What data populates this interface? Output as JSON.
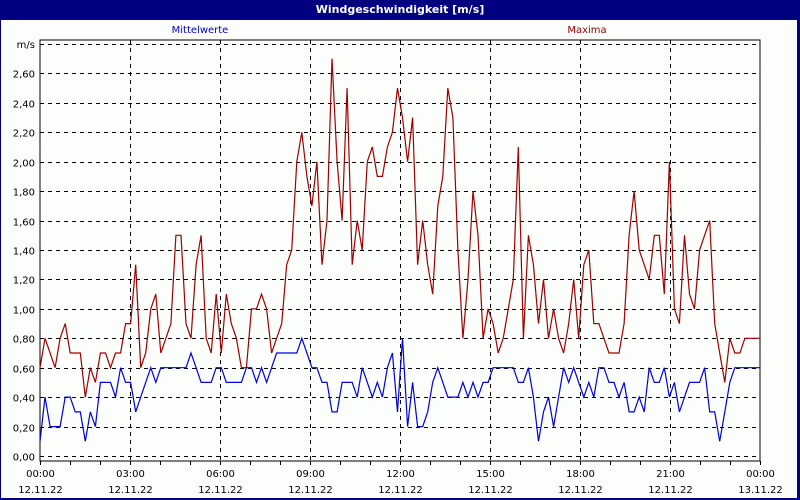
{
  "window": {
    "title": "Windgeschwindigkeit [m/s]"
  },
  "legend": {
    "mean_label": "Mittelwerte",
    "max_label": "Maxima",
    "mean_color": "#0000e0",
    "max_color": "#a00000"
  },
  "axis": {
    "y_unit": "m/s",
    "y_ticks": [
      "0,00",
      "0,20",
      "0,40",
      "0,60",
      "0,80",
      "1,00",
      "1,20",
      "1,40",
      "1,60",
      "1,80",
      "2,00",
      "2,20",
      "2,40",
      "2,60"
    ],
    "x_ticks": [
      {
        "time": "00:00",
        "date": "12.11.22"
      },
      {
        "time": "03:00",
        "date": "12.11.22"
      },
      {
        "time": "06:00",
        "date": "12.11.22"
      },
      {
        "time": "09:00",
        "date": "12.11.22"
      },
      {
        "time": "12:00",
        "date": "12.11.22"
      },
      {
        "time": "15:00",
        "date": "12.11.22"
      },
      {
        "time": "18:00",
        "date": "12.11.22"
      },
      {
        "time": "21:00",
        "date": "12.11.22"
      },
      {
        "time": "00:00",
        "date": "13.11.22"
      }
    ]
  },
  "chart_data": {
    "type": "line",
    "title": "Windgeschwindigkeit [m/s]",
    "xlabel": "",
    "ylabel": "m/s",
    "ylim": [
      0,
      2.8
    ],
    "x_range": [
      "12.11.22 00:00",
      "13.11.22 00:00"
    ],
    "interval_minutes": 10,
    "grid": true,
    "legend_position": "top",
    "series": [
      {
        "name": "Mittelwerte",
        "color": "#0000e0",
        "values": [
          0.1,
          0.4,
          0.2,
          0.2,
          0.2,
          0.4,
          0.4,
          0.3,
          0.3,
          0.1,
          0.3,
          0.2,
          0.5,
          0.5,
          0.5,
          0.4,
          0.6,
          0.5,
          0.5,
          0.3,
          0.4,
          0.5,
          0.6,
          0.5,
          0.6,
          0.6,
          0.6,
          0.6,
          0.6,
          0.6,
          0.7,
          0.6,
          0.5,
          0.5,
          0.5,
          0.6,
          0.6,
          0.5,
          0.5,
          0.5,
          0.5,
          0.6,
          0.6,
          0.5,
          0.6,
          0.5,
          0.6,
          0.7,
          0.7,
          0.7,
          0.7,
          0.7,
          0.8,
          0.7,
          0.6,
          0.6,
          0.5,
          0.5,
          0.3,
          0.3,
          0.5,
          0.5,
          0.5,
          0.4,
          0.6,
          0.5,
          0.4,
          0.5,
          0.4,
          0.6,
          0.7,
          0.3,
          0.8,
          0.2,
          0.5,
          0.2,
          0.2,
          0.3,
          0.5,
          0.6,
          0.5,
          0.4,
          0.4,
          0.4,
          0.5,
          0.4,
          0.5,
          0.4,
          0.5,
          0.5,
          0.6,
          0.6,
          0.6,
          0.6,
          0.6,
          0.5,
          0.5,
          0.6,
          0.4,
          0.1,
          0.3,
          0.4,
          0.2,
          0.4,
          0.6,
          0.5,
          0.6,
          0.5,
          0.4,
          0.5,
          0.4,
          0.6,
          0.6,
          0.5,
          0.5,
          0.4,
          0.5,
          0.3,
          0.3,
          0.4,
          0.3,
          0.6,
          0.5,
          0.5,
          0.6,
          0.4,
          0.5,
          0.3,
          0.4,
          0.5,
          0.5,
          0.5,
          0.6,
          0.3,
          0.3,
          0.1,
          0.3,
          0.5,
          0.6,
          0.6,
          0.6,
          0.6,
          0.6,
          0.6
        ]
      },
      {
        "name": "Maxima",
        "color": "#a00000",
        "values": [
          0.6,
          0.8,
          0.7,
          0.6,
          0.8,
          0.9,
          0.7,
          0.7,
          0.7,
          0.4,
          0.6,
          0.5,
          0.7,
          0.7,
          0.6,
          0.7,
          0.7,
          0.9,
          0.9,
          1.3,
          0.6,
          0.7,
          1.0,
          1.1,
          0.7,
          0.8,
          0.9,
          1.5,
          1.5,
          0.9,
          0.8,
          1.3,
          1.5,
          0.8,
          0.7,
          1.1,
          0.7,
          1.1,
          0.9,
          0.8,
          0.6,
          0.6,
          1.0,
          1.0,
          1.1,
          1.0,
          0.7,
          0.8,
          0.9,
          1.3,
          1.4,
          2.0,
          2.2,
          1.9,
          1.7,
          2.0,
          1.3,
          1.6,
          2.7,
          2.0,
          1.6,
          2.5,
          1.3,
          1.6,
          1.4,
          2.0,
          2.1,
          1.9,
          1.9,
          2.1,
          2.2,
          2.5,
          2.3,
          2.0,
          2.3,
          1.3,
          1.6,
          1.3,
          1.1,
          1.7,
          1.9,
          2.5,
          2.3,
          1.4,
          0.8,
          1.2,
          1.8,
          1.5,
          0.8,
          1.0,
          0.9,
          0.7,
          0.8,
          1.0,
          1.2,
          2.1,
          0.8,
          1.5,
          1.3,
          0.9,
          1.2,
          0.8,
          1.0,
          0.8,
          0.7,
          0.9,
          1.2,
          0.8,
          1.3,
          1.4,
          0.9,
          0.9,
          0.8,
          0.7,
          0.7,
          0.7,
          0.9,
          1.5,
          1.8,
          1.4,
          1.3,
          1.2,
          1.5,
          1.5,
          1.1,
          2.0,
          1.0,
          0.9,
          1.5,
          1.1,
          1.0,
          1.4,
          1.5,
          1.6,
          0.9,
          0.7,
          0.5,
          0.8,
          0.7,
          0.7,
          0.8,
          0.8,
          0.8,
          0.8
        ]
      }
    ]
  }
}
